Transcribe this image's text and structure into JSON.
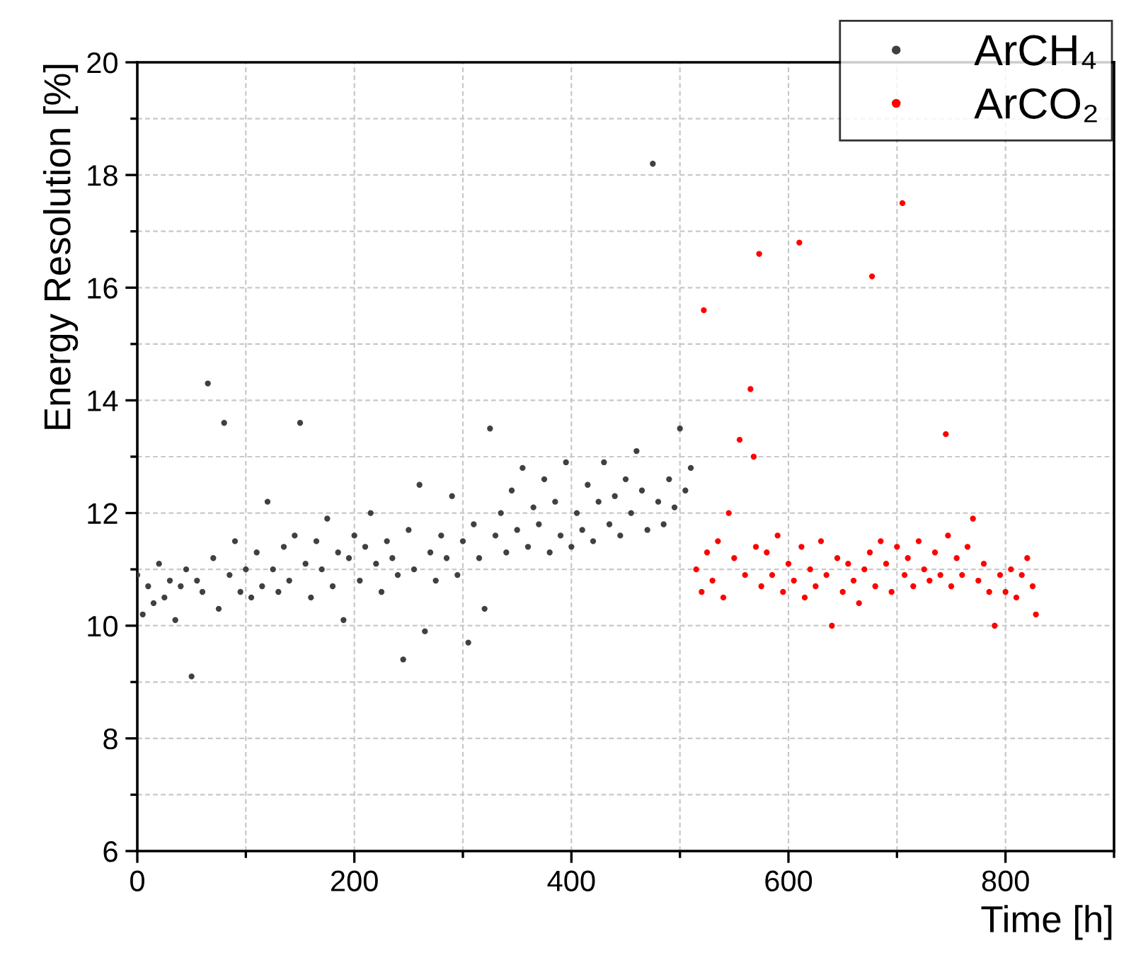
{
  "chart_data": {
    "type": "scatter",
    "xlabel": "Time [h]",
    "ylabel": "Energy Resolution [%]",
    "xlim": [
      0,
      900
    ],
    "ylim": [
      6,
      20
    ],
    "xticks": [
      0,
      200,
      400,
      600,
      800
    ],
    "yticks": [
      6,
      8,
      10,
      12,
      14,
      16,
      18,
      20
    ],
    "grid": true,
    "legend": "top right",
    "marker": "circle",
    "series": [
      {
        "name": "ArCH₄",
        "color": "#404040",
        "x": [
          0,
          5,
          10,
          15,
          20,
          25,
          30,
          35,
          40,
          45,
          50,
          55,
          60,
          65,
          70,
          75,
          80,
          85,
          90,
          95,
          100,
          105,
          110,
          115,
          120,
          125,
          130,
          135,
          140,
          145,
          150,
          155,
          160,
          165,
          170,
          175,
          180,
          185,
          190,
          195,
          200,
          205,
          210,
          215,
          220,
          225,
          230,
          235,
          240,
          245,
          250,
          255,
          260,
          265,
          270,
          275,
          280,
          285,
          290,
          295,
          300,
          305,
          310,
          315,
          320,
          325,
          330,
          335,
          340,
          345,
          350,
          355,
          360,
          365,
          370,
          375,
          380,
          385,
          390,
          395,
          400,
          405,
          410,
          415,
          420,
          425,
          430,
          435,
          440,
          445,
          450,
          455,
          460,
          465,
          470,
          475,
          480,
          485,
          490,
          495,
          500,
          505,
          510
        ],
        "values": [
          10.9,
          10.2,
          10.7,
          10.4,
          11.1,
          10.5,
          10.8,
          10.1,
          10.7,
          11.0,
          9.1,
          10.8,
          10.6,
          14.3,
          11.2,
          10.3,
          13.6,
          10.9,
          11.5,
          10.6,
          11.0,
          10.5,
          11.3,
          10.7,
          12.2,
          11.0,
          10.6,
          11.4,
          10.8,
          11.6,
          13.6,
          11.1,
          10.5,
          11.5,
          11.0,
          11.9,
          10.7,
          11.3,
          10.1,
          11.2,
          11.6,
          10.8,
          11.4,
          12.0,
          11.1,
          10.6,
          11.5,
          11.2,
          10.9,
          9.4,
          11.7,
          11.0,
          12.5,
          9.9,
          11.3,
          10.8,
          11.6,
          11.2,
          12.3,
          10.9,
          11.5,
          9.7,
          11.8,
          11.2,
          10.3,
          13.5,
          11.6,
          12.0,
          11.3,
          12.4,
          11.7,
          12.8,
          11.4,
          12.1,
          11.8,
          12.6,
          11.3,
          12.2,
          11.6,
          12.9,
          11.4,
          12.0,
          11.7,
          12.5,
          11.5,
          12.2,
          12.9,
          11.8,
          12.3,
          11.6,
          12.6,
          12.0,
          13.1,
          12.4,
          11.7,
          18.2,
          12.2,
          11.8,
          12.6,
          12.1,
          13.5,
          12.4,
          12.8
        ]
      },
      {
        "name": "ArCO₂",
        "color": "#ff0000",
        "x": [
          515,
          520,
          522,
          525,
          530,
          535,
          540,
          545,
          550,
          555,
          560,
          565,
          568,
          570,
          573,
          575,
          580,
          585,
          590,
          595,
          600,
          605,
          610,
          612,
          615,
          620,
          625,
          630,
          635,
          640,
          645,
          650,
          655,
          660,
          665,
          670,
          675,
          677,
          680,
          685,
          690,
          695,
          700,
          705,
          707,
          710,
          715,
          720,
          725,
          730,
          735,
          740,
          745,
          747,
          750,
          755,
          760,
          765,
          770,
          775,
          780,
          785,
          790,
          795,
          800,
          805,
          810,
          815,
          820,
          825,
          828
        ],
        "values": [
          11.0,
          10.6,
          15.6,
          11.3,
          10.8,
          11.5,
          10.5,
          12.0,
          11.2,
          13.3,
          10.9,
          14.2,
          13.0,
          11.4,
          16.6,
          10.7,
          11.3,
          10.9,
          11.6,
          10.6,
          11.1,
          10.8,
          16.8,
          11.4,
          10.5,
          11.0,
          10.7,
          11.5,
          10.9,
          10.0,
          11.2,
          10.6,
          11.1,
          10.8,
          10.4,
          11.0,
          11.3,
          16.2,
          10.7,
          11.5,
          11.1,
          10.6,
          11.4,
          17.5,
          10.9,
          11.2,
          10.7,
          11.5,
          11.0,
          10.8,
          11.3,
          10.9,
          13.4,
          11.6,
          10.7,
          11.2,
          10.9,
          11.4,
          11.9,
          10.8,
          11.1,
          10.6,
          10.0,
          10.9,
          10.6,
          11.0,
          10.5,
          10.9,
          11.2,
          10.7,
          10.2
        ]
      }
    ]
  }
}
